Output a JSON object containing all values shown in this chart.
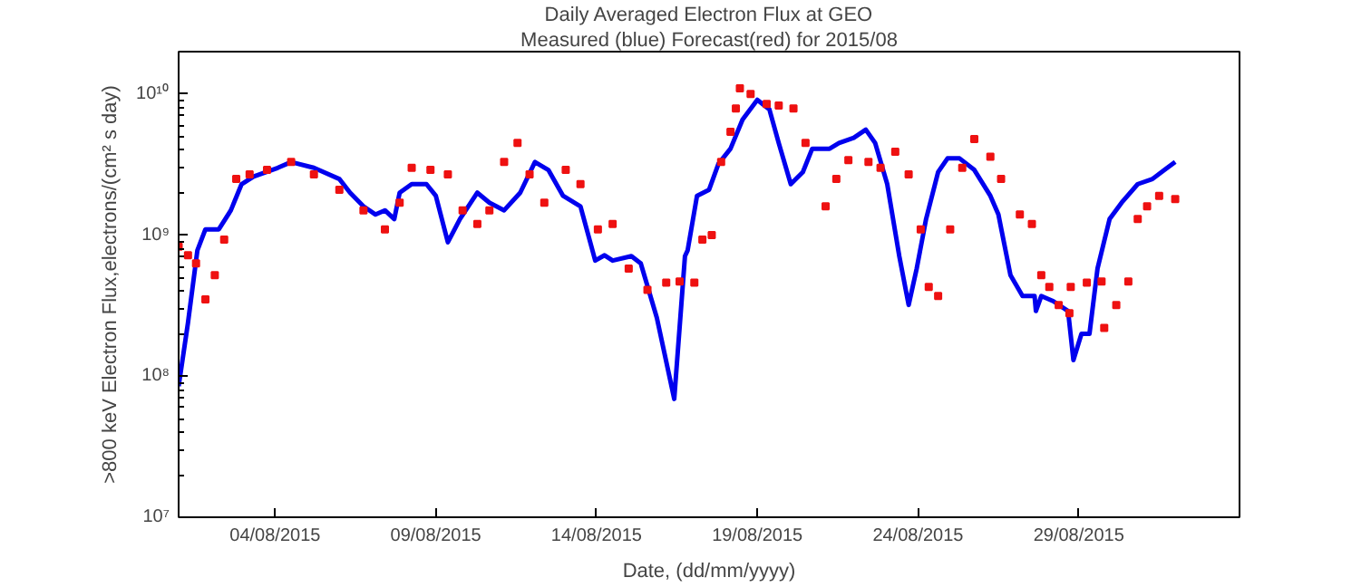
{
  "chart_data": {
    "type": "line",
    "title": "Daily Averaged Electron Flux at GEO",
    "subtitle": "Measured (blue) Forecast(red) for 2015/08",
    "xlabel": "Date, (dd/mm/yyyy)",
    "ylabel": ">800 keV Electron Flux,electrons/(cm² s day)",
    "log": "y",
    "grid": false,
    "xlim": [
      "2015-08-01",
      "2015-09-03"
    ],
    "ylim": [
      10000000.0,
      20000000000.0
    ],
    "xticks": [
      {
        "value": "2015-08-04",
        "label": "04/08/2015"
      },
      {
        "value": "2015-08-09",
        "label": "09/08/2015"
      },
      {
        "value": "2015-08-14",
        "label": "14/08/2015"
      },
      {
        "value": "2015-08-19",
        "label": "19/08/2015"
      },
      {
        "value": "2015-08-24",
        "label": "24/08/2015"
      },
      {
        "value": "2015-08-29",
        "label": "29/08/2015"
      }
    ],
    "yticks": [
      {
        "value": 10000000.0,
        "label": "10⁷"
      },
      {
        "value": 100000000.0,
        "label": "10⁸"
      },
      {
        "value": 1000000000.0,
        "label": "10⁹"
      },
      {
        "value": 10000000000.0,
        "label": "10¹⁰"
      }
    ],
    "series": [
      {
        "color": "#0000ee",
        "line_style": "solid",
        "x": [
          "2015-08-01T00:00",
          "2015-08-01T07:00",
          "2015-08-01T14:00",
          "2015-08-01T20:00",
          "2015-08-02T06:00",
          "2015-08-02T15:00",
          "2015-08-02T23:00",
          "2015-08-03T08:00",
          "2015-08-04T02:00",
          "2015-08-04T12:00",
          "2015-08-05T05:00",
          "2015-08-06T00:00",
          "2015-08-06T08:00",
          "2015-08-06T18:00",
          "2015-08-07T03:00",
          "2015-08-07T10:00",
          "2015-08-07T17:00",
          "2015-08-07T21:00",
          "2015-08-08T06:00",
          "2015-08-08T17:00",
          "2015-08-09T00:00",
          "2015-08-09T09:00",
          "2015-08-09T18:00",
          "2015-08-10T07:00",
          "2015-08-10T16:00",
          "2015-08-11T03:00",
          "2015-08-11T15:00",
          "2015-08-12T02:00",
          "2015-08-12T12:00",
          "2015-08-12T23:00",
          "2015-08-13T12:00",
          "2015-08-13T23:00",
          "2015-08-14T06:00",
          "2015-08-14T12:00",
          "2015-08-15T02:00",
          "2015-08-15T09:00",
          "2015-08-15T21:00",
          "2015-08-16T10:00",
          "2015-08-16T18:00",
          "2015-08-16T20:00",
          "2015-08-17T03:00",
          "2015-08-17T12:00",
          "2015-08-17T19:00",
          "2015-08-18T04:00",
          "2015-08-18T13:00",
          "2015-08-19T00:00",
          "2015-08-19T09:00",
          "2015-08-19T16:00",
          "2015-08-20T01:00",
          "2015-08-20T10:00",
          "2015-08-20T17:00",
          "2015-08-21T06:00",
          "2015-08-21T13:00",
          "2015-08-22T00:00",
          "2015-08-22T09:00",
          "2015-08-22T16:00",
          "2015-08-23T01:00",
          "2015-08-23T10:00",
          "2015-08-23T17:00",
          "2015-08-23T23:00",
          "2015-08-24T06:00",
          "2015-08-24T15:00",
          "2015-08-24T22:00",
          "2015-08-25T07:00",
          "2015-08-25T18:00",
          "2015-08-26T06:00",
          "2015-08-26T12:00",
          "2015-08-26T21:00",
          "2015-08-27T06:00",
          "2015-08-27T15:00",
          "2015-08-27T16:00",
          "2015-08-27T20:00",
          "2015-08-28T05:00",
          "2015-08-28T16:00",
          "2015-08-28T20:00",
          "2015-08-29T02:00",
          "2015-08-29T08:00",
          "2015-08-29T14:00",
          "2015-08-29T23:00",
          "2015-08-30T08:00",
          "2015-08-30T20:00",
          "2015-08-31T07:00",
          "2015-08-31T16:00",
          "2015-09-01T00:00"
        ],
        "values": [
          85000000.0,
          240000000.0,
          780000000.0,
          1100000000.0,
          1100000000.0,
          1500000000.0,
          2300000000.0,
          2600000000.0,
          3000000000.0,
          3300000000.0,
          3000000000.0,
          2500000000.0,
          2000000000.0,
          1600000000.0,
          1400000000.0,
          1500000000.0,
          1300000000.0,
          2000000000.0,
          2300000000.0,
          2300000000.0,
          1900000000.0,
          890000000.0,
          1300000000.0,
          2000000000.0,
          1700000000.0,
          1500000000.0,
          2000000000.0,
          3300000000.0,
          2900000000.0,
          1900000000.0,
          1600000000.0,
          660000000.0,
          720000000.0,
          660000000.0,
          710000000.0,
          630000000.0,
          260000000.0,
          69000000.0,
          710000000.0,
          780000000.0,
          1900000000.0,
          2100000000.0,
          3200000000.0,
          4100000000.0,
          6600000000.0,
          9100000000.0,
          7800000000.0,
          4500000000.0,
          2300000000.0,
          2800000000.0,
          4100000000.0,
          4100000000.0,
          4500000000.0,
          4900000000.0,
          5600000000.0,
          4500000000.0,
          2300000000.0,
          710000000.0,
          320000000.0,
          580000000.0,
          1300000000.0,
          2800000000.0,
          3500000000.0,
          3500000000.0,
          2900000000.0,
          1900000000.0,
          1400000000.0,
          520000000.0,
          370000000.0,
          370000000.0,
          290000000.0,
          370000000.0,
          340000000.0,
          290000000.0,
          130000000.0,
          200000000.0,
          200000000.0,
          580000000.0,
          1300000000.0,
          1700000000.0,
          2300000000.0,
          2500000000.0,
          2900000000.0,
          3300000000.0
        ]
      },
      {
        "type": "scatter",
        "color": "#ee1111",
        "marker": "square",
        "x": [
          "2015-08-01T00:00",
          "2015-08-01T07:00",
          "2015-08-01T13:00",
          "2015-08-01T20:00",
          "2015-08-02T03:00",
          "2015-08-02T10:00",
          "2015-08-02T19:00",
          "2015-08-03T05:00",
          "2015-08-03T18:00",
          "2015-08-04T12:00",
          "2015-08-05T05:00",
          "2015-08-06T00:00",
          "2015-08-06T18:00",
          "2015-08-07T10:00",
          "2015-08-07T21:00",
          "2015-08-08T06:00",
          "2015-08-08T20:00",
          "2015-08-09T09:00",
          "2015-08-09T20:00",
          "2015-08-10T07:00",
          "2015-08-10T16:00",
          "2015-08-11T03:00",
          "2015-08-11T13:00",
          "2015-08-11T22:00",
          "2015-08-12T09:00",
          "2015-08-13T01:00",
          "2015-08-13T12:00",
          "2015-08-14T01:00",
          "2015-08-14T12:00",
          "2015-08-15T00:00",
          "2015-08-15T14:00",
          "2015-08-16T04:00",
          "2015-08-16T14:00",
          "2015-08-17T01:00",
          "2015-08-17T07:00",
          "2015-08-17T14:00",
          "2015-08-17T21:00",
          "2015-08-18T04:00",
          "2015-08-18T08:00",
          "2015-08-18T11:00",
          "2015-08-18T19:00",
          "2015-08-19T07:00",
          "2015-08-19T16:00",
          "2015-08-20T03:00",
          "2015-08-20T12:00",
          "2015-08-21T03:00",
          "2015-08-21T11:00",
          "2015-08-21T20:00",
          "2015-08-22T11:00",
          "2015-08-22T20:00",
          "2015-08-23T07:00",
          "2015-08-23T17:00",
          "2015-08-24T02:00",
          "2015-08-24T08:00",
          "2015-08-24T15:00",
          "2015-08-25T00:00",
          "2015-08-25T09:00",
          "2015-08-25T18:00",
          "2015-08-26T06:00",
          "2015-08-26T14:00",
          "2015-08-27T04:00",
          "2015-08-27T13:00",
          "2015-08-27T20:00",
          "2015-08-28T02:00",
          "2015-08-28T09:00",
          "2015-08-28T17:00",
          "2015-08-28T18:00",
          "2015-08-29T06:00",
          "2015-08-29T17:00",
          "2015-08-29T19:00",
          "2015-08-30T04:00",
          "2015-08-30T13:00",
          "2015-08-30T20:00",
          "2015-08-31T03:00",
          "2015-08-31T12:00",
          "2015-09-01T00:00"
        ],
        "values": [
          830000000.0,
          720000000.0,
          630000000.0,
          350000000.0,
          520000000.0,
          930000000.0,
          2500000000.0,
          2700000000.0,
          2900000000.0,
          3300000000.0,
          2700000000.0,
          2100000000.0,
          1500000000.0,
          1100000000.0,
          1700000000.0,
          3000000000.0,
          2900000000.0,
          2700000000.0,
          1500000000.0,
          1200000000.0,
          1500000000.0,
          3300000000.0,
          4500000000.0,
          2700000000.0,
          1700000000.0,
          2900000000.0,
          2300000000.0,
          1100000000.0,
          1200000000.0,
          580000000.0,
          410000000.0,
          460000000.0,
          470000000.0,
          460000000.0,
          930000000.0,
          1000000000.0,
          3300000000.0,
          5400000000.0,
          7900000000.0,
          11000000000.0,
          10000000000.0,
          8500000000.0,
          8300000000.0,
          7900000000.0,
          4500000000.0,
          1600000000.0,
          2500000000.0,
          3400000000.0,
          3300000000.0,
          3000000000.0,
          3900000000.0,
          2700000000.0,
          1100000000.0,
          430000000.0,
          370000000.0,
          1100000000.0,
          3000000000.0,
          4800000000.0,
          3600000000.0,
          2500000000.0,
          1400000000.0,
          1200000000.0,
          520000000.0,
          430000000.0,
          320000000.0,
          280000000.0,
          430000000.0,
          460000000.0,
          470000000.0,
          220000000.0,
          320000000.0,
          470000000.0,
          1300000000.0,
          1600000000.0,
          1900000000.0,
          1800000000.0
        ]
      }
    ]
  }
}
